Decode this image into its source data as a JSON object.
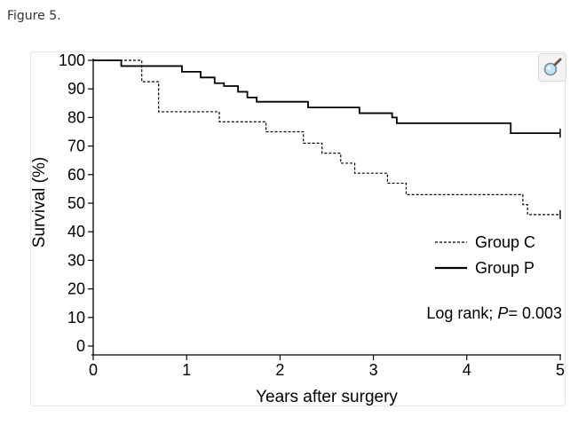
{
  "caption": "Figure 5.",
  "zoom_icon": "magnifier-icon",
  "chart_data": {
    "type": "line",
    "step": true,
    "xlabel": "Years after surgery",
    "ylabel": "Survival (%)",
    "xlim": [
      0,
      5
    ],
    "ylim": [
      0,
      100
    ],
    "xticks": [
      "0",
      "1",
      "2",
      "3",
      "4",
      "5"
    ],
    "yticks": [
      "0",
      "10",
      "20",
      "30",
      "40",
      "50",
      "60",
      "70",
      "80",
      "90",
      "100"
    ],
    "grid": false,
    "legend_position": "right",
    "annotation": {
      "prefix": "Log rank; ",
      "italic": "P",
      "suffix": "= 0.003"
    },
    "series": [
      {
        "name": "Group C",
        "style": "dotted",
        "color": "#000000",
        "x": [
          0,
          0.47,
          0.52,
          0.65,
          0.7,
          1.3,
          1.35,
          1.75,
          1.85,
          2.25,
          2.45,
          2.65,
          2.8,
          3.15,
          3.35,
          4.6,
          4.65,
          5.0
        ],
        "y": [
          100,
          100,
          92.5,
          92.5,
          82,
          82,
          78.5,
          78.5,
          75,
          71,
          67.5,
          64,
          60.5,
          57,
          53,
          49.5,
          46,
          46
        ]
      },
      {
        "name": "Group P",
        "style": "solid",
        "color": "#000000",
        "x": [
          0,
          0.3,
          0.95,
          1.15,
          1.3,
          1.4,
          1.55,
          1.65,
          1.75,
          2.3,
          2.85,
          3.2,
          3.25,
          4.45,
          4.47,
          5.0
        ],
        "y": [
          100,
          98,
          96,
          94,
          92,
          91,
          89,
          87,
          85.5,
          83.5,
          81.5,
          80,
          78,
          78,
          74.5,
          74.5
        ]
      }
    ]
  }
}
